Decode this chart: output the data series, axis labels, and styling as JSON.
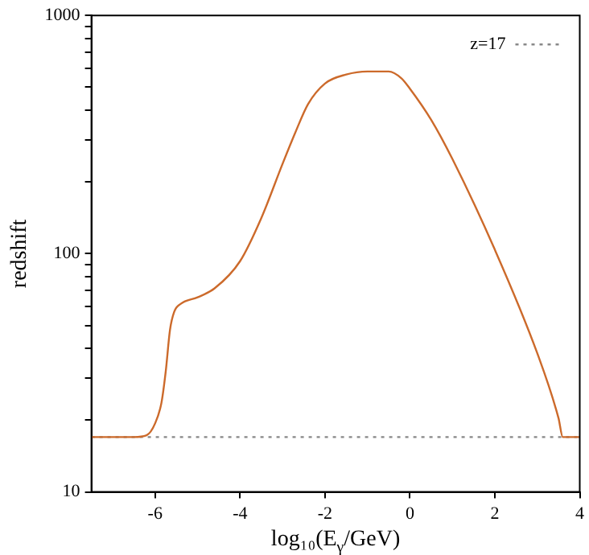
{
  "chart_data": {
    "type": "line",
    "xlabel": "log₁₀(E$_{γ}$/GeV)",
    "ylabel": "redshift",
    "log": true,
    "xlim": [
      -7.5,
      4
    ],
    "xticks": [
      -6,
      -4,
      -2,
      0,
      2,
      4
    ],
    "ylim": [
      10,
      1000
    ],
    "yticks": [
      10,
      {
        "value": 20,
        "label": null
      },
      {
        "value": 30,
        "label": null
      },
      {
        "value": 40,
        "label": null
      },
      {
        "value": 50,
        "label": null
      },
      {
        "value": 60,
        "label": null
      },
      {
        "value": 70,
        "label": null
      },
      {
        "value": 80,
        "label": null
      },
      {
        "value": 90,
        "label": null
      },
      100,
      {
        "value": 200,
        "label": null
      },
      {
        "value": 300,
        "label": null
      },
      {
        "value": 400,
        "label": null
      },
      {
        "value": 500,
        "label": null
      },
      {
        "value": 600,
        "label": null
      },
      {
        "value": 700,
        "label": null
      },
      {
        "value": 800,
        "label": null
      },
      {
        "value": 900,
        "label": null
      },
      1000
    ],
    "grid": false,
    "legend": "top right",
    "series": [
      {
        "color": "#cc6a2b",
        "x": [
          -7.5,
          -6.5,
          -6.2,
          -6.0,
          -5.85,
          -5.75,
          -5.65,
          -5.55,
          -5.4,
          -5.0,
          -4.6,
          -4.0,
          -3.5,
          -3.0,
          -2.7,
          -2.4,
          -2.0,
          -1.5,
          -1.0,
          -0.5,
          -0.2,
          0,
          0.5,
          1.0,
          2.0,
          3.0,
          3.5,
          3.6,
          4.0
        ],
        "values": [
          17,
          17,
          17.3,
          19.4,
          23.7,
          32,
          47.8,
          57,
          61.5,
          65.6,
          71.5,
          93,
          141,
          238,
          322,
          424,
          518,
          565,
          582,
          582,
          545,
          493,
          365,
          250,
          104,
          38.2,
          20.4,
          17,
          17
        ]
      },
      {
        "name": "z=17",
        "color": "#888888",
        "line_style": "dotted",
        "x": [
          -7.5,
          4
        ],
        "values": [
          17,
          17
        ]
      }
    ]
  }
}
